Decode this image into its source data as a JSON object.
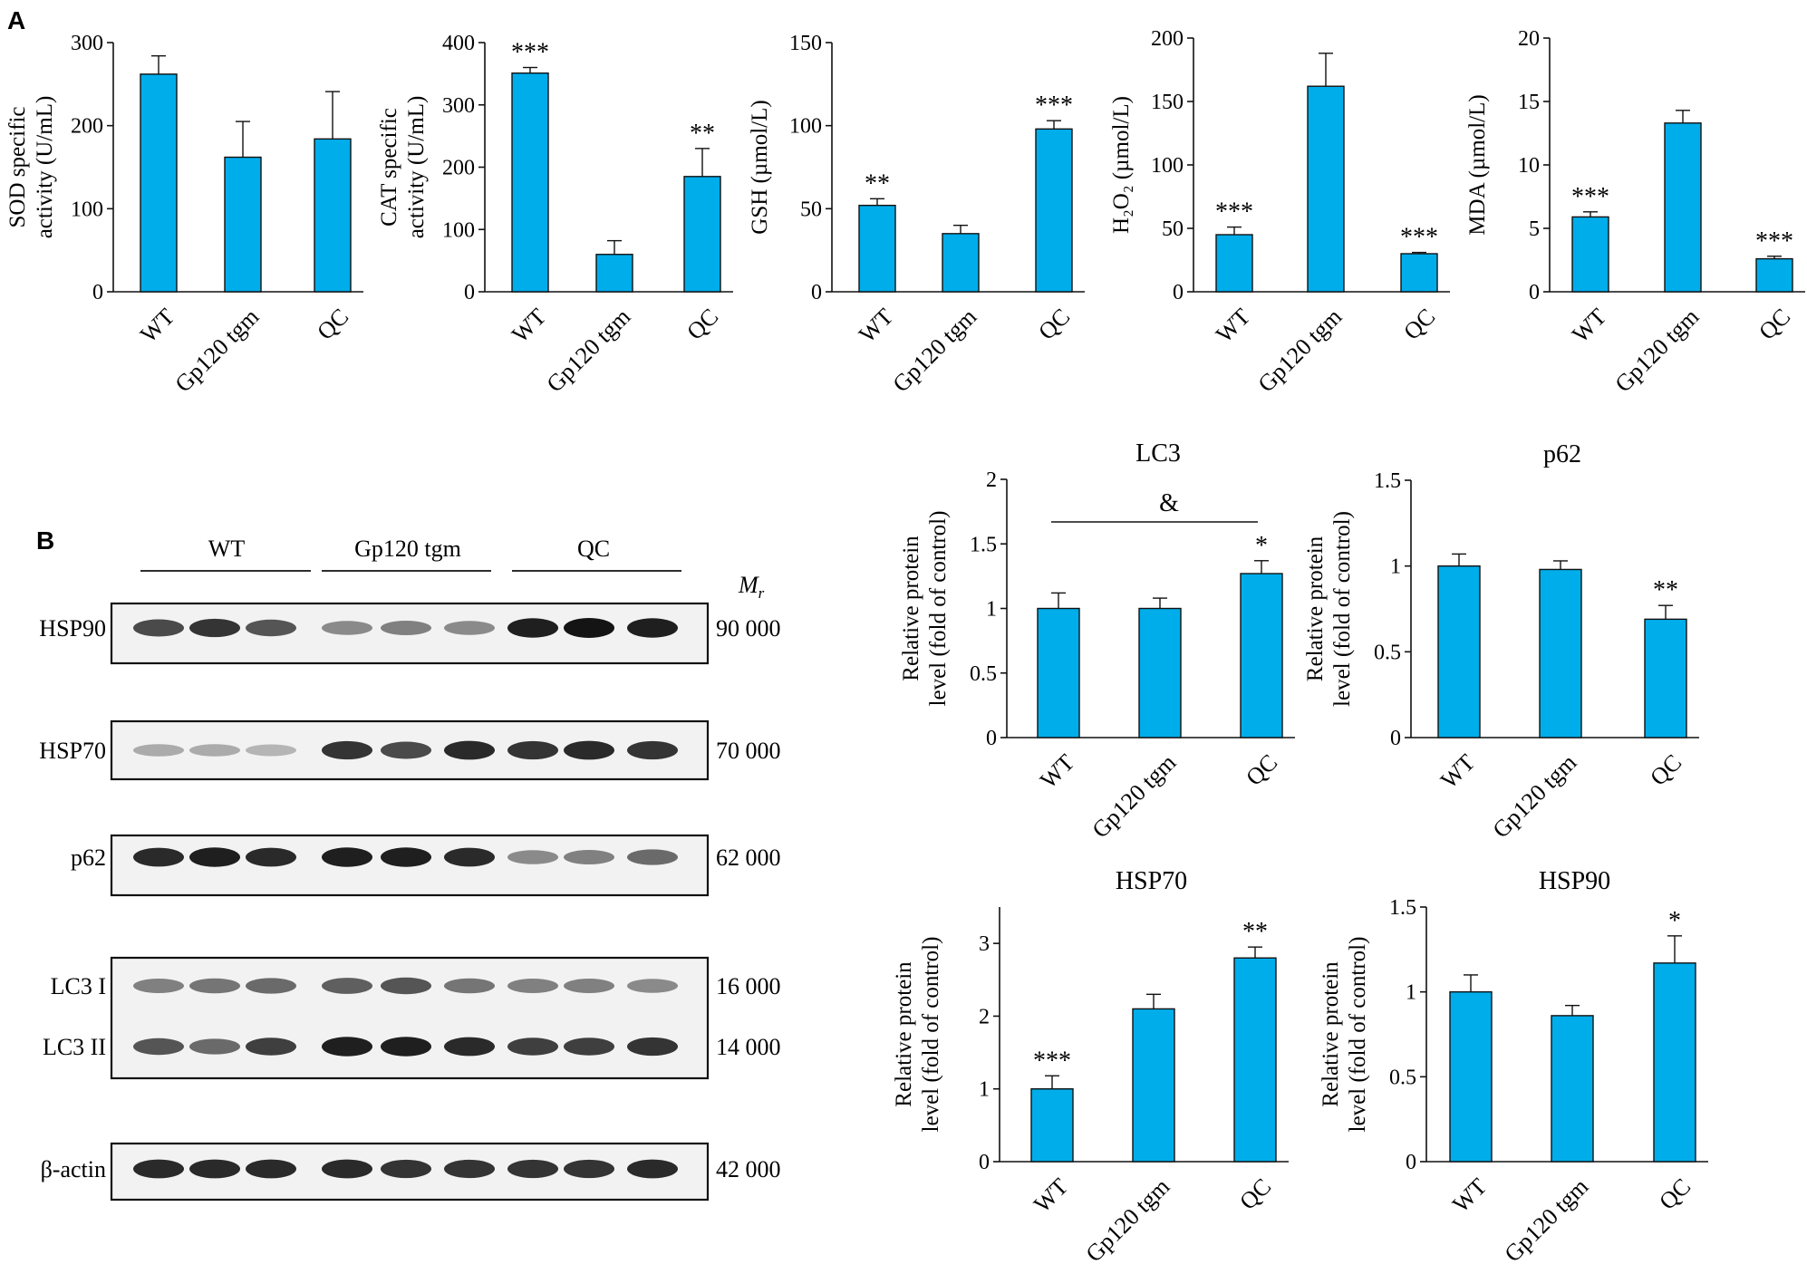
{
  "panel_labels": {
    "a": "A",
    "b": "B"
  },
  "bar_color": "#00adeb",
  "chart_data": [
    {
      "type": "bar",
      "categories": [
        "WT",
        "Gp120 tgm",
        "QC"
      ],
      "values": [
        262,
        162,
        184
      ],
      "errors": [
        22,
        43,
        57
      ],
      "ylabel_lines": [
        "SOD specific",
        "activity (U/mL)"
      ],
      "ylim": [
        0,
        300
      ],
      "yticks": [
        0,
        100,
        200,
        300
      ],
      "annotations": [
        "",
        "",
        ""
      ],
      "title": ""
    },
    {
      "type": "bar",
      "categories": [
        "WT",
        "Gp120 tgm",
        "QC"
      ],
      "values": [
        351,
        60,
        185
      ],
      "errors": [
        9,
        22,
        45
      ],
      "ylabel_lines": [
        "CAT specific",
        "activity (U/mL)"
      ],
      "ylim": [
        0,
        400
      ],
      "yticks": [
        0,
        100,
        200,
        300,
        400
      ],
      "annotations": [
        "***",
        "",
        "**"
      ],
      "title": ""
    },
    {
      "type": "bar",
      "categories": [
        "WT",
        "Gp120 tgm",
        "QC"
      ],
      "values": [
        52,
        35,
        98
      ],
      "errors": [
        4,
        5,
        5
      ],
      "ylabel_lines": [
        "GSH (µmol/L)"
      ],
      "ylim": [
        0,
        150
      ],
      "yticks": [
        0,
        50,
        100,
        150
      ],
      "annotations": [
        "**",
        "",
        "***"
      ],
      "title": ""
    },
    {
      "type": "bar",
      "categories": [
        "WT",
        "Gp120 tgm",
        "QC"
      ],
      "values": [
        45,
        162,
        30
      ],
      "errors": [
        6,
        26,
        1
      ],
      "ylabel_lines": [
        "H₂O₂ (µmol/L)"
      ],
      "ylim": [
        0,
        200
      ],
      "yticks": [
        0,
        50,
        100,
        150,
        200
      ],
      "annotations": [
        "***",
        "",
        "***"
      ],
      "title": ""
    },
    {
      "type": "bar",
      "categories": [
        "WT",
        "Gp120 tgm",
        "QC"
      ],
      "values": [
        5.9,
        13.3,
        2.6
      ],
      "errors": [
        0.4,
        1.0,
        0.2
      ],
      "ylabel_lines": [
        "MDA (µmol/L)"
      ],
      "ylim": [
        0,
        20
      ],
      "yticks": [
        0,
        5,
        10,
        15,
        20
      ],
      "annotations": [
        "***",
        "",
        "***"
      ],
      "title": ""
    },
    {
      "type": "bar",
      "categories": [
        "WT",
        "Gp120 tgm",
        "QC"
      ],
      "values": [
        1.0,
        1.0,
        1.27
      ],
      "errors": [
        0.12,
        0.08,
        0.1
      ],
      "ylabel_lines": [
        "Relative protein",
        "level (fold of control)"
      ],
      "ylim": [
        0,
        2.0
      ],
      "yticks": [
        0,
        0.5,
        1.0,
        1.5,
        2.0
      ],
      "annotations": [
        "",
        "",
        "*"
      ],
      "title": "LC3",
      "bracket_label": "&"
    },
    {
      "type": "bar",
      "categories": [
        "WT",
        "Gp120 tgm",
        "QC"
      ],
      "values": [
        1.0,
        0.98,
        0.69
      ],
      "errors": [
        0.07,
        0.05,
        0.08
      ],
      "ylabel_lines": [
        "Relative protein",
        "level (fold of control)"
      ],
      "ylim": [
        0,
        1.5
      ],
      "yticks": [
        0,
        0.5,
        1.0,
        1.5
      ],
      "annotations": [
        "",
        "",
        "**"
      ],
      "title": "p62"
    },
    {
      "type": "bar",
      "categories": [
        "WT",
        "Gp120 tgm",
        "QC"
      ],
      "values": [
        1.0,
        2.1,
        2.8
      ],
      "errors": [
        0.18,
        0.2,
        0.15
      ],
      "ylabel_lines": [
        "Relative protein",
        "level (fold of control)"
      ],
      "ylim": [
        0,
        3.5
      ],
      "yticks": [
        0,
        1,
        2,
        3
      ],
      "annotations": [
        "***",
        "",
        "**"
      ],
      "title": "HSP70"
    },
    {
      "type": "bar",
      "categories": [
        "WT",
        "Gp120 tgm",
        "QC"
      ],
      "values": [
        1.0,
        0.86,
        1.17
      ],
      "errors": [
        0.1,
        0.06,
        0.16
      ],
      "ylabel_lines": [
        "Relative protein",
        "level (fold of control)"
      ],
      "ylim": [
        0,
        1.5
      ],
      "yticks": [
        0,
        0.5,
        1.0,
        1.5
      ],
      "annotations": [
        "",
        "",
        "*"
      ],
      "title": "HSP90"
    }
  ],
  "blot": {
    "groups": [
      "WT",
      "Gp120 tgm",
      "QC"
    ],
    "mr_label": "M",
    "mr_sub": "r",
    "rows": [
      {
        "label": "HSP90",
        "mw": "90 000",
        "intensities": [
          0.75,
          0.85,
          0.7,
          0.45,
          0.5,
          0.45,
          0.95,
          1.0,
          0.95
        ]
      },
      {
        "label": "HSP70",
        "mw": "70 000",
        "intensities": [
          0.3,
          0.3,
          0.25,
          0.85,
          0.75,
          0.9,
          0.85,
          0.9,
          0.85
        ]
      },
      {
        "label": "p62",
        "mw": "62 000",
        "intensities": [
          0.9,
          0.95,
          0.9,
          0.95,
          0.95,
          0.9,
          0.45,
          0.5,
          0.6
        ]
      },
      {
        "label": "LC3 I",
        "mw": "16 000",
        "intensities": [
          0.5,
          0.55,
          0.6,
          0.65,
          0.7,
          0.55,
          0.5,
          0.5,
          0.45
        ]
      },
      {
        "label": "LC3 II",
        "mw": "14 000",
        "intensities": [
          0.7,
          0.6,
          0.8,
          0.95,
          0.95,
          0.9,
          0.8,
          0.8,
          0.85
        ]
      },
      {
        "label": "β-actin",
        "mw": "42 000",
        "intensities": [
          0.9,
          0.9,
          0.9,
          0.9,
          0.85,
          0.85,
          0.85,
          0.85,
          0.9
        ]
      }
    ]
  }
}
